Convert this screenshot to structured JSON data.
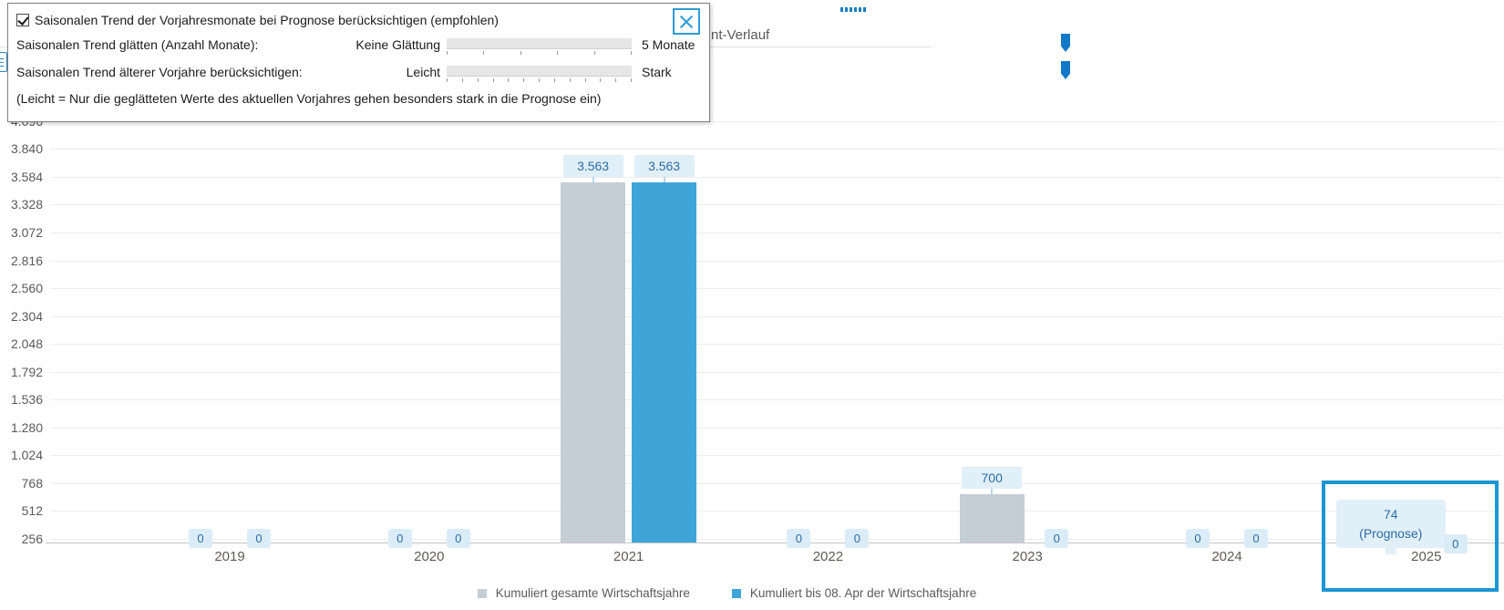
{
  "dialog": {
    "checkbox": {
      "label": "Saisonalen Trend der Vorjahresmonate bei Prognose berücksichtigen (empfohlen)",
      "checked": true
    },
    "sliders": [
      {
        "label": "Saisonalen Trend glätten (Anzahl Monate):",
        "min_label": "Keine Glättung",
        "max_label": "5 Monate",
        "position": "max",
        "ticks": 6
      },
      {
        "label": "Saisonalen Trend älterer Vorjahre berücksichtigen:",
        "min_label": "Leicht",
        "max_label": "Stark",
        "position": "max",
        "ticks": 13
      }
    ],
    "note": "(Leicht = Nur die geglätteten Werte des aktuellen Vorjahres gehen besonders stark in die Prognose ein)"
  },
  "header": {
    "truncated_tab_label": "nt-Verlauf",
    "partial_icon_letter": "E",
    "drag_handle_icon": "six-dots-handle"
  },
  "chart_data": {
    "type": "bar",
    "categories": [
      "2019",
      "2020",
      "2021",
      "2022",
      "2023",
      "2024",
      "2025"
    ],
    "series": [
      {
        "name": "Kumuliert gesamte Wirtschaftsjahre",
        "color": "#c5ced5",
        "values": [
          0,
          0,
          3563,
          0,
          700,
          0,
          74
        ],
        "value_labels": [
          "0",
          "0",
          "3.563",
          "0",
          "700",
          "0",
          "74\n(Prognose)"
        ]
      },
      {
        "name": "Kumuliert bis 08. Apr der Wirtschaftsjahre",
        "color": "#3fa5d6",
        "values": [
          0,
          0,
          3563,
          0,
          0,
          0,
          0
        ],
        "value_labels": [
          "0",
          "0",
          "3.563",
          "0",
          "0",
          "0",
          "0"
        ]
      }
    ],
    "yticks": [
      "256",
      "512",
      "768",
      "1.024",
      "1.280",
      "1.536",
      "1.792",
      "2.048",
      "2.304",
      "2.560",
      "2.816",
      "3.072",
      "3.328",
      "3.584",
      "3.840",
      "4.096"
    ],
    "ylim": [
      256,
      4096
    ],
    "grid": true,
    "legend_position": "bottom",
    "highlighted_category": "2025",
    "prognose_note": "(Prognose)"
  },
  "colors": {
    "accent_blue": "#2e9bd6",
    "highlight_border": "#1b95d3",
    "label_text": "#2c6da6",
    "label_bg": "#e1eff9"
  }
}
